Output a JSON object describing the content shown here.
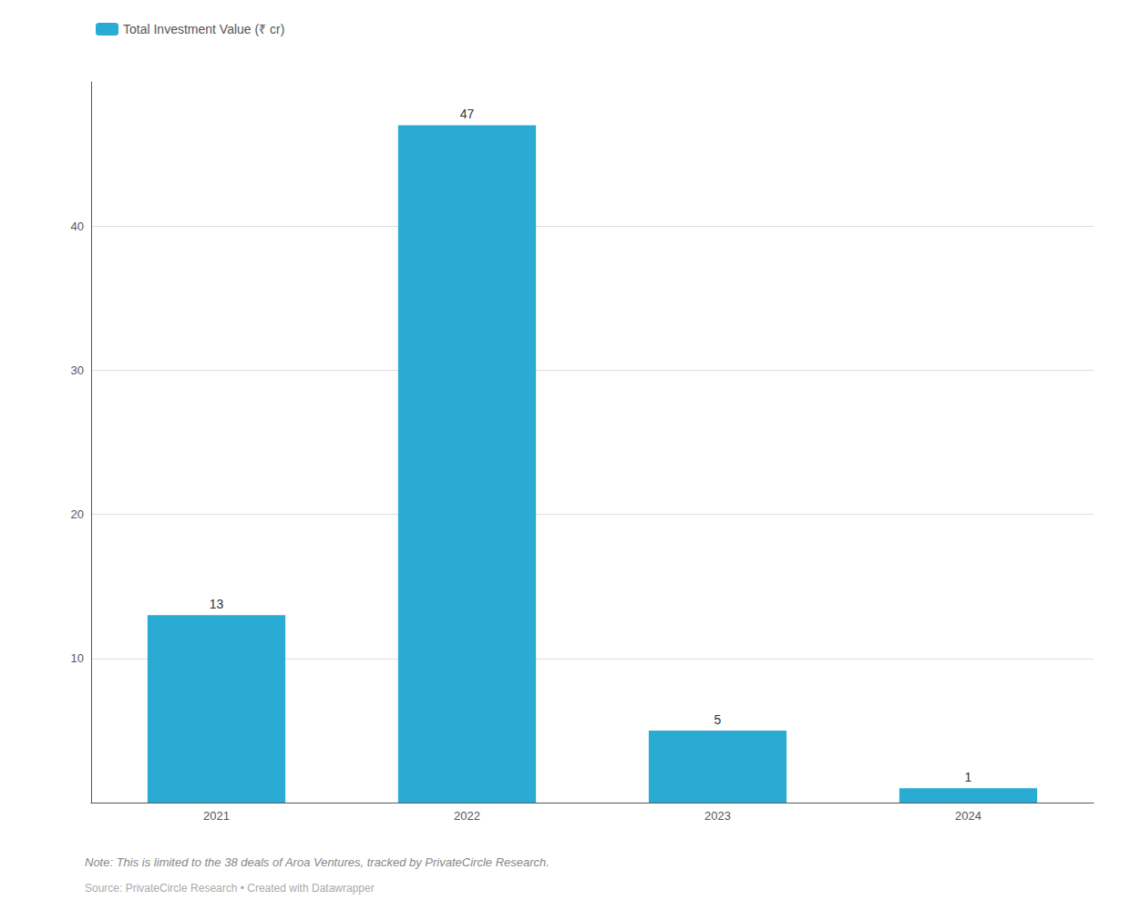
{
  "chart_data": {
    "type": "bar",
    "categories": [
      "2021",
      "2022",
      "2023",
      "2024"
    ],
    "series": [
      {
        "name": "Total Investment Value (₹ cr)",
        "color": "#29ABD4",
        "values": [
          13,
          47,
          5,
          1
        ]
      }
    ],
    "ylim": [
      0,
      50
    ],
    "yticks": [
      10,
      20,
      30,
      40
    ],
    "grid": true,
    "legend": "upper left",
    "data_labels": true,
    "annotations": [
      "Note: This is limited to the 38 deals of Aroa Ventures, tracked by PrivateCircle Research.",
      "Source: PrivateCircle Research • Created with Datawrapper"
    ]
  }
}
